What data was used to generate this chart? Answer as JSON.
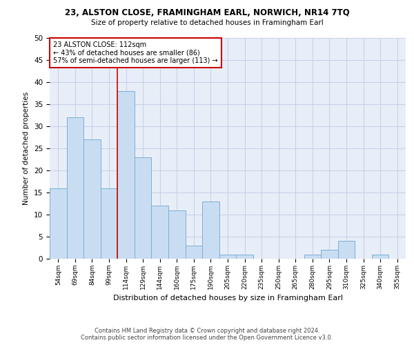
{
  "title1": "23, ALSTON CLOSE, FRAMINGHAM EARL, NORWICH, NR14 7TQ",
  "title2": "Size of property relative to detached houses in Framingham Earl",
  "xlabel": "Distribution of detached houses by size in Framingham Earl",
  "ylabel": "Number of detached properties",
  "footer1": "Contains HM Land Registry data © Crown copyright and database right 2024.",
  "footer2": "Contains public sector information licensed under the Open Government Licence v3.0.",
  "annotation_title": "23 ALSTON CLOSE: 112sqm",
  "annotation_line1": "← 43% of detached houses are smaller (86)",
  "annotation_line2": "57% of semi-detached houses are larger (113) →",
  "bar_labels": [
    "54sqm",
    "69sqm",
    "84sqm",
    "99sqm",
    "114sqm",
    "129sqm",
    "144sqm",
    "160sqm",
    "175sqm",
    "190sqm",
    "205sqm",
    "220sqm",
    "235sqm",
    "250sqm",
    "265sqm",
    "280sqm",
    "295sqm",
    "310sqm",
    "325sqm",
    "340sqm",
    "355sqm"
  ],
  "bar_values": [
    16,
    32,
    27,
    16,
    38,
    23,
    12,
    11,
    3,
    13,
    1,
    1,
    0,
    0,
    0,
    1,
    2,
    4,
    0,
    1,
    0
  ],
  "bar_color": "#c9ddf2",
  "bar_edge_color": "#7aafd4",
  "vline_color": "#cc0000",
  "annotation_box_color": "#cc0000",
  "ylim": [
    0,
    50
  ],
  "yticks": [
    0,
    5,
    10,
    15,
    20,
    25,
    30,
    35,
    40,
    45,
    50
  ],
  "grid_color": "#c8d0e8",
  "bg_color": "#e8eef8",
  "figsize": [
    6.0,
    5.0
  ],
  "dpi": 100
}
